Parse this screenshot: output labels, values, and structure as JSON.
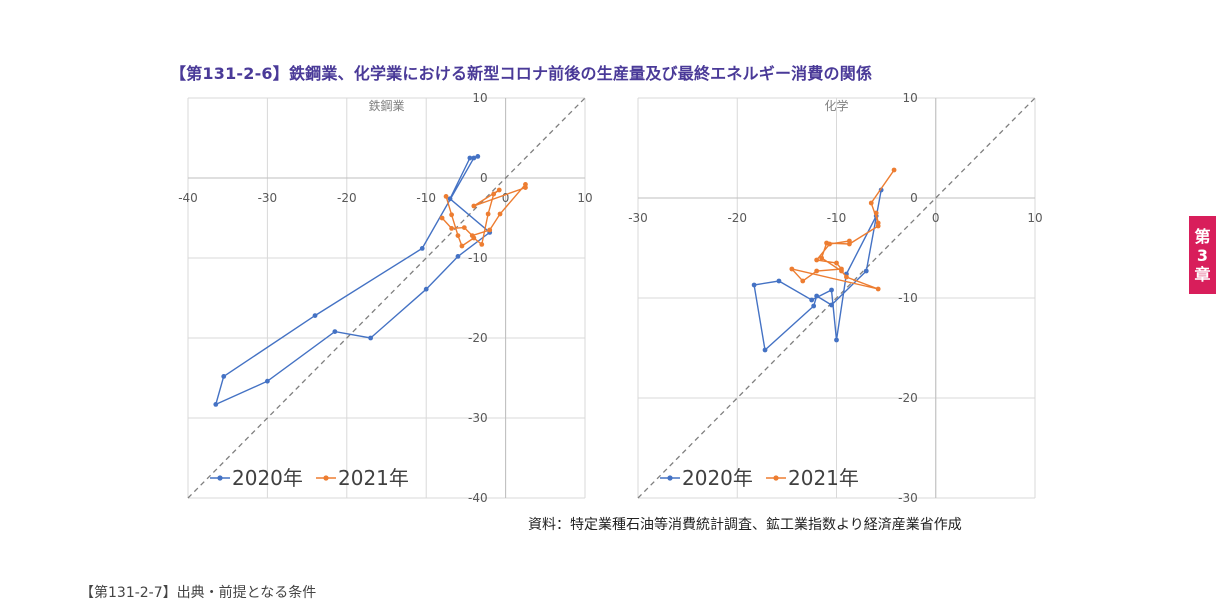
{
  "title": "【第131-2-6】鉄鋼業、化学業における新型コロナ前後の生産量及び最終エネルギー消費の関係",
  "source": "資料：特定業種石油等消費統計調査、鉱工業指数より経済産業省作成",
  "chapter_tab": [
    "第",
    "3",
    "章"
  ],
  "next_section_fragment": "【第131-2-7】出典・前提となる条件",
  "colors": {
    "series_2020": "#4472c4",
    "series_2021": "#ed7d31",
    "diagonal": "#7f7f7f",
    "grid": "#d9d9d9",
    "title": "#4a3a98",
    "tab": "#d81e5b"
  },
  "chart_data": [
    {
      "type": "line",
      "title": "鉄鋼業",
      "xlim": [
        -40,
        10
      ],
      "ylim": [
        -40,
        10
      ],
      "xticks": [
        -40,
        -30,
        -20,
        -10,
        0,
        10
      ],
      "yticks": [
        -40,
        -30,
        -20,
        -10,
        0,
        10
      ],
      "grid": true,
      "diagonal": "y=x dashed",
      "legend_position": "bottom-left",
      "series": [
        {
          "name": "2020年",
          "points": [
            [
              -3.5,
              2.7
            ],
            [
              -4,
              2.5
            ],
            [
              -10.5,
              -8.8
            ],
            [
              -24,
              -17.2
            ],
            [
              -35.5,
              -24.8
            ],
            [
              -36.5,
              -28.3
            ],
            [
              -30,
              -25.4
            ],
            [
              -21.5,
              -19.2
            ],
            [
              -17,
              -20
            ],
            [
              -10,
              -13.9
            ],
            [
              -6,
              -9.8
            ],
            [
              -2,
              -6.8
            ],
            [
              -7,
              -2.6
            ],
            [
              -4.5,
              2.5
            ]
          ]
        },
        {
          "name": "2021年",
          "points": [
            [
              -7.5,
              -2.3
            ],
            [
              -6.8,
              -4.6
            ],
            [
              -6,
              -7.2
            ],
            [
              -5.5,
              -8.5
            ],
            [
              -4,
              -7.5
            ],
            [
              -3,
              -8.3
            ],
            [
              -2.2,
              -4.5
            ],
            [
              -1.5,
              -2
            ],
            [
              -0.8,
              -1.5
            ],
            [
              -4,
              -3.5
            ],
            [
              2.5,
              -1.2
            ],
            [
              2.5,
              -0.8
            ],
            [
              -0.7,
              -4.5
            ],
            [
              -2,
              -6.5
            ],
            [
              -4.2,
              -7.2
            ],
            [
              -5.2,
              -6.2
            ],
            [
              -6.8,
              -6.3
            ],
            [
              -8,
              -5
            ]
          ]
        }
      ]
    },
    {
      "type": "line",
      "title": "化学",
      "xlim": [
        -30,
        10
      ],
      "ylim": [
        -30,
        10
      ],
      "xticks": [
        -30,
        -20,
        -10,
        0,
        10
      ],
      "yticks": [
        -30,
        -20,
        -10,
        0,
        10
      ],
      "grid": true,
      "diagonal": "y=x dashed",
      "legend_position": "bottom-left",
      "series": [
        {
          "name": "2020年",
          "points": [
            [
              -5.5,
              0.8
            ],
            [
              -7,
              -7.3
            ],
            [
              -10.5,
              -10.7
            ],
            [
              -12,
              -9.8
            ],
            [
              -12.3,
              -10.8
            ],
            [
              -17.2,
              -15.2
            ],
            [
              -18.3,
              -8.7
            ],
            [
              -15.8,
              -8.3
            ],
            [
              -12.5,
              -10.2
            ],
            [
              -10.5,
              -9.2
            ],
            [
              -10,
              -14.2
            ],
            [
              -9,
              -7.6
            ],
            [
              -6,
              -1.8
            ]
          ]
        },
        {
          "name": "2021年",
          "points": [
            [
              -4.2,
              2.8
            ],
            [
              -6.5,
              -0.5
            ],
            [
              -5.8,
              -2.5
            ],
            [
              -6,
              -1.5
            ],
            [
              -5.8,
              -2.8
            ],
            [
              -8.7,
              -4.6
            ],
            [
              -11,
              -4.5
            ],
            [
              -11.5,
              -6
            ],
            [
              -9.5,
              -7.3
            ],
            [
              -9,
              -7.9
            ],
            [
              -5.8,
              -9.1
            ],
            [
              -14.5,
              -7.1
            ],
            [
              -13.4,
              -8.3
            ],
            [
              -12,
              -7.3
            ],
            [
              -9.5,
              -7.1
            ],
            [
              -10,
              -6.5
            ],
            [
              -12,
              -6.2
            ],
            [
              -10.7,
              -4.6
            ],
            [
              -8.7,
              -4.3
            ]
          ]
        }
      ]
    }
  ]
}
